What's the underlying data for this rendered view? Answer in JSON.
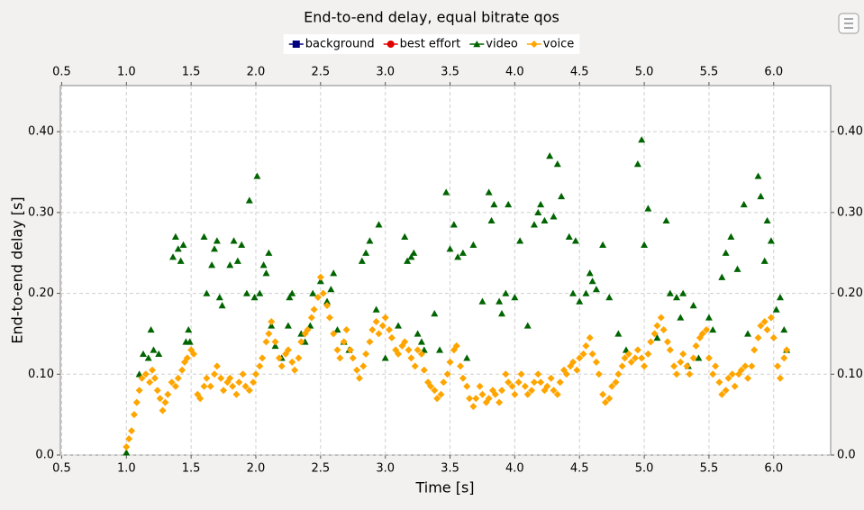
{
  "chart_data": {
    "type": "scatter",
    "title": "End-to-end delay, equal bitrate qos",
    "x_label": "Time [s]",
    "y_label": "End-to-end delay [s]",
    "xlim": [
      0.49,
      6.44
    ],
    "ylim": [
      0,
      0.457
    ],
    "xticks": [
      {
        "value": 0.5,
        "label": "0.5"
      },
      {
        "value": 1,
        "label": "1.0"
      },
      {
        "value": 1.5,
        "label": "1.5"
      },
      {
        "value": 2,
        "label": "2.0"
      },
      {
        "value": 2.5,
        "label": "2.5"
      },
      {
        "value": 3,
        "label": "3.0"
      },
      {
        "value": 3.5,
        "label": "3.5"
      },
      {
        "value": 4,
        "label": "4.0"
      },
      {
        "value": 4.5,
        "label": "4.5"
      },
      {
        "value": 5,
        "label": "5.0"
      },
      {
        "value": 5.5,
        "label": "5.5"
      },
      {
        "value": 6,
        "label": "6.0"
      }
    ],
    "yticks": [
      {
        "value": 0,
        "label": "0.0"
      },
      {
        "value": 0.1,
        "label": "0.10"
      },
      {
        "value": 0.2,
        "label": "0.20"
      },
      {
        "value": 0.3,
        "label": "0.30"
      },
      {
        "value": 0.4,
        "label": "0.40"
      }
    ],
    "grid": true,
    "legend_position": "top",
    "series": [
      {
        "name": "background",
        "color": "#000080",
        "marker": "square",
        "x": [],
        "values": []
      },
      {
        "name": "best effort",
        "color": "#e00000",
        "marker": "circle",
        "x": [],
        "values": []
      },
      {
        "name": "video",
        "color": "#006400",
        "marker": "triangle",
        "x": [
          1.0,
          1.1,
          1.13,
          1.17,
          1.19,
          1.21,
          1.25,
          1.36,
          1.38,
          1.4,
          1.42,
          1.44,
          1.46,
          1.48,
          1.49,
          1.6,
          1.62,
          1.66,
          1.68,
          1.7,
          1.72,
          1.74,
          1.8,
          1.83,
          1.86,
          1.89,
          1.93,
          1.95,
          1.99,
          2.01,
          2.03,
          2.06,
          2.08,
          2.1,
          2.12,
          2.15,
          2.2,
          2.25,
          2.26,
          2.28,
          2.35,
          2.38,
          2.42,
          2.44,
          2.5,
          2.55,
          2.58,
          2.6,
          2.63,
          2.68,
          2.72,
          2.82,
          2.85,
          2.88,
          2.93,
          2.95,
          3.0,
          3.1,
          3.15,
          3.17,
          3.2,
          3.22,
          3.25,
          3.28,
          3.3,
          3.38,
          3.42,
          3.47,
          3.5,
          3.53,
          3.56,
          3.6,
          3.63,
          3.68,
          3.75,
          3.8,
          3.82,
          3.84,
          3.88,
          3.9,
          3.93,
          3.95,
          4.0,
          4.04,
          4.1,
          4.15,
          4.18,
          4.2,
          4.23,
          4.27,
          4.3,
          4.33,
          4.36,
          4.42,
          4.45,
          4.47,
          4.5,
          4.55,
          4.58,
          4.6,
          4.63,
          4.68,
          4.73,
          4.8,
          4.86,
          4.95,
          4.98,
          5.0,
          5.03,
          5.1,
          5.17,
          5.2,
          5.25,
          5.28,
          5.3,
          5.34,
          5.38,
          5.42,
          5.5,
          5.53,
          5.6,
          5.63,
          5.67,
          5.72,
          5.77,
          5.8,
          5.88,
          5.9,
          5.93,
          5.95,
          5.98,
          6.02,
          6.05,
          6.08,
          6.1
        ],
        "values": [
          0.003,
          0.1,
          0.125,
          0.12,
          0.155,
          0.13,
          0.125,
          0.245,
          0.27,
          0.255,
          0.24,
          0.26,
          0.14,
          0.155,
          0.14,
          0.27,
          0.2,
          0.235,
          0.255,
          0.265,
          0.195,
          0.185,
          0.235,
          0.265,
          0.24,
          0.26,
          0.2,
          0.315,
          0.195,
          0.345,
          0.2,
          0.235,
          0.225,
          0.25,
          0.16,
          0.135,
          0.12,
          0.16,
          0.195,
          0.2,
          0.15,
          0.14,
          0.16,
          0.2,
          0.215,
          0.19,
          0.205,
          0.225,
          0.155,
          0.14,
          0.13,
          0.24,
          0.25,
          0.265,
          0.18,
          0.285,
          0.12,
          0.16,
          0.27,
          0.24,
          0.245,
          0.25,
          0.15,
          0.14,
          0.13,
          0.175,
          0.13,
          0.325,
          0.255,
          0.285,
          0.245,
          0.25,
          0.12,
          0.26,
          0.19,
          0.325,
          0.29,
          0.31,
          0.19,
          0.175,
          0.2,
          0.31,
          0.195,
          0.265,
          0.16,
          0.285,
          0.3,
          0.31,
          0.29,
          0.37,
          0.295,
          0.36,
          0.32,
          0.27,
          0.2,
          0.265,
          0.19,
          0.2,
          0.225,
          0.215,
          0.205,
          0.26,
          0.195,
          0.15,
          0.13,
          0.36,
          0.39,
          0.26,
          0.305,
          0.145,
          0.29,
          0.2,
          0.195,
          0.17,
          0.2,
          0.11,
          0.185,
          0.12,
          0.17,
          0.155,
          0.22,
          0.25,
          0.27,
          0.23,
          0.31,
          0.15,
          0.345,
          0.32,
          0.24,
          0.29,
          0.265,
          0.18,
          0.195,
          0.155,
          0.13
        ]
      },
      {
        "name": "voice",
        "color": "#ffa500",
        "marker": "diamond",
        "x": [
          1.0,
          1.02,
          1.04,
          1.06,
          1.08,
          1.1,
          1.12,
          1.15,
          1.18,
          1.2,
          1.22,
          1.24,
          1.26,
          1.28,
          1.3,
          1.32,
          1.35,
          1.38,
          1.4,
          1.43,
          1.45,
          1.47,
          1.5,
          1.52,
          1.55,
          1.57,
          1.6,
          1.62,
          1.65,
          1.68,
          1.7,
          1.73,
          1.75,
          1.78,
          1.8,
          1.82,
          1.85,
          1.87,
          1.9,
          1.92,
          1.95,
          1.98,
          2.0,
          2.03,
          2.05,
          2.08,
          2.1,
          2.12,
          2.15,
          2.18,
          2.2,
          2.23,
          2.25,
          2.28,
          2.3,
          2.33,
          2.35,
          2.38,
          2.4,
          2.43,
          2.45,
          2.48,
          2.5,
          2.52,
          2.55,
          2.57,
          2.6,
          2.63,
          2.65,
          2.68,
          2.7,
          2.73,
          2.75,
          2.78,
          2.8,
          2.83,
          2.85,
          2.88,
          2.9,
          2.93,
          2.95,
          2.98,
          3.0,
          3.03,
          3.05,
          3.08,
          3.1,
          3.13,
          3.15,
          3.18,
          3.2,
          3.23,
          3.25,
          3.28,
          3.3,
          3.33,
          3.35,
          3.38,
          3.4,
          3.43,
          3.45,
          3.48,
          3.5,
          3.53,
          3.55,
          3.58,
          3.6,
          3.63,
          3.65,
          3.68,
          3.7,
          3.73,
          3.75,
          3.78,
          3.8,
          3.83,
          3.85,
          3.88,
          3.9,
          3.93,
          3.95,
          3.98,
          4.0,
          4.03,
          4.05,
          4.08,
          4.1,
          4.13,
          4.15,
          4.18,
          4.2,
          4.23,
          4.25,
          4.28,
          4.3,
          4.33,
          4.35,
          4.38,
          4.4,
          4.43,
          4.45,
          4.48,
          4.5,
          4.53,
          4.55,
          4.58,
          4.6,
          4.63,
          4.65,
          4.68,
          4.7,
          4.73,
          4.75,
          4.78,
          4.8,
          4.83,
          4.85,
          4.88,
          4.9,
          4.93,
          4.95,
          4.98,
          5.0,
          5.03,
          5.05,
          5.08,
          5.1,
          5.13,
          5.15,
          5.18,
          5.2,
          5.23,
          5.25,
          5.28,
          5.3,
          5.33,
          5.35,
          5.38,
          5.4,
          5.43,
          5.45,
          5.48,
          5.5,
          5.53,
          5.55,
          5.58,
          5.6,
          5.63,
          5.65,
          5.68,
          5.7,
          5.73,
          5.75,
          5.78,
          5.8,
          5.83,
          5.85,
          5.88,
          5.9,
          5.93,
          5.95,
          5.98,
          6.0,
          6.03,
          6.05,
          6.08,
          6.1
        ],
        "values": [
          0.01,
          0.02,
          0.03,
          0.05,
          0.065,
          0.08,
          0.095,
          0.1,
          0.09,
          0.105,
          0.095,
          0.08,
          0.07,
          0.055,
          0.065,
          0.075,
          0.09,
          0.085,
          0.095,
          0.105,
          0.115,
          0.12,
          0.13,
          0.125,
          0.075,
          0.07,
          0.085,
          0.095,
          0.085,
          0.1,
          0.11,
          0.095,
          0.08,
          0.09,
          0.095,
          0.085,
          0.075,
          0.09,
          0.1,
          0.085,
          0.08,
          0.09,
          0.1,
          0.11,
          0.12,
          0.14,
          0.15,
          0.165,
          0.14,
          0.12,
          0.11,
          0.125,
          0.13,
          0.115,
          0.105,
          0.12,
          0.14,
          0.15,
          0.155,
          0.17,
          0.18,
          0.195,
          0.22,
          0.2,
          0.185,
          0.17,
          0.15,
          0.13,
          0.12,
          0.14,
          0.155,
          0.13,
          0.12,
          0.105,
          0.095,
          0.11,
          0.125,
          0.14,
          0.155,
          0.165,
          0.15,
          0.16,
          0.17,
          0.155,
          0.145,
          0.13,
          0.125,
          0.135,
          0.14,
          0.13,
          0.12,
          0.11,
          0.13,
          0.125,
          0.105,
          0.09,
          0.085,
          0.08,
          0.07,
          0.075,
          0.09,
          0.1,
          0.115,
          0.13,
          0.135,
          0.11,
          0.095,
          0.085,
          0.07,
          0.06,
          0.07,
          0.085,
          0.075,
          0.065,
          0.07,
          0.08,
          0.075,
          0.065,
          0.08,
          0.1,
          0.09,
          0.085,
          0.075,
          0.09,
          0.1,
          0.085,
          0.075,
          0.08,
          0.09,
          0.1,
          0.09,
          0.08,
          0.085,
          0.095,
          0.08,
          0.075,
          0.09,
          0.105,
          0.1,
          0.11,
          0.115,
          0.105,
          0.12,
          0.125,
          0.135,
          0.145,
          0.125,
          0.115,
          0.1,
          0.075,
          0.065,
          0.07,
          0.085,
          0.09,
          0.1,
          0.11,
          0.12,
          0.125,
          0.115,
          0.12,
          0.13,
          0.12,
          0.11,
          0.125,
          0.14,
          0.15,
          0.16,
          0.17,
          0.155,
          0.14,
          0.13,
          0.11,
          0.1,
          0.115,
          0.125,
          0.11,
          0.1,
          0.12,
          0.135,
          0.145,
          0.15,
          0.155,
          0.12,
          0.1,
          0.11,
          0.09,
          0.075,
          0.08,
          0.095,
          0.1,
          0.085,
          0.1,
          0.105,
          0.11,
          0.095,
          0.11,
          0.13,
          0.145,
          0.16,
          0.165,
          0.155,
          0.17,
          0.145,
          0.11,
          0.095,
          0.12,
          0.13
        ]
      }
    ]
  }
}
